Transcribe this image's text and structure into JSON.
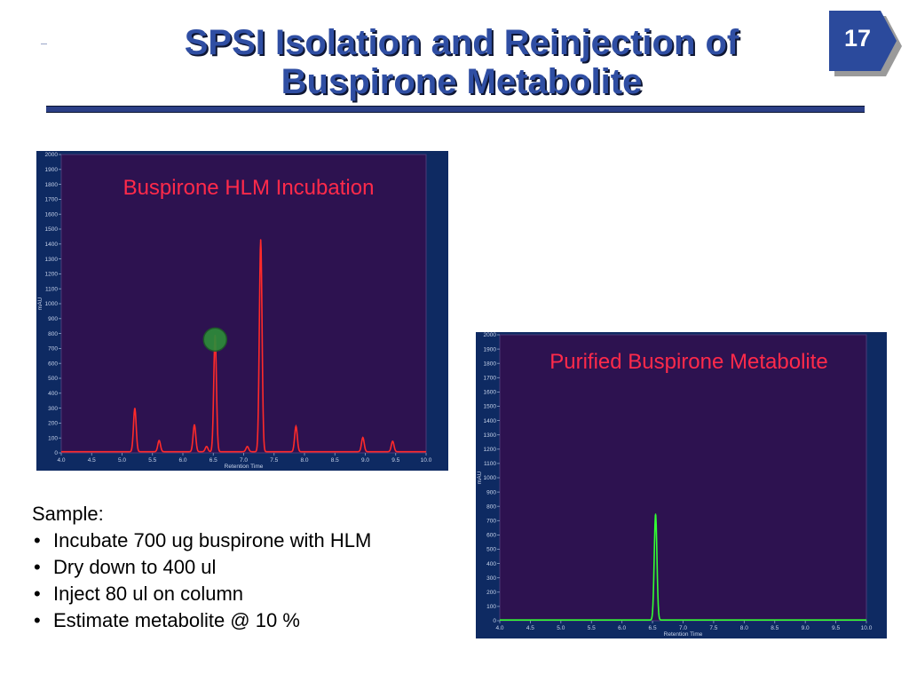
{
  "slide": {
    "title_line1": "SPSI Isolation and Reinjection of",
    "title_line2": "Buspirone Metabolite",
    "page_number": "17",
    "colors": {
      "title": "#2f4ea3",
      "title_shadow": "#0e1633",
      "rule": "#2b3f86",
      "badge": "#2b4a9c"
    }
  },
  "sample": {
    "heading": "Sample:",
    "items": [
      "Incubate 700 ug buspirone with HLM",
      "Dry down to 400 ul",
      "Inject 80 ul on column",
      "Estimate metabolite @ 10 %"
    ]
  },
  "chart_data": [
    {
      "type": "line",
      "title": "Buspirone HLM Incubation",
      "xlabel": "Retention Time",
      "ylabel": "mAU",
      "xlim": [
        4.0,
        10.0
      ],
      "ylim": [
        0,
        2000
      ],
      "xticks": [
        "4.0",
        "4.5",
        "5.0",
        "5.5",
        "6.0",
        "6.5",
        "7.0",
        "7.5",
        "8.0",
        "8.5",
        "9.0",
        "9.5",
        "10.0"
      ],
      "yticks": [
        "0",
        "100",
        "200",
        "300",
        "400",
        "500",
        "600",
        "700",
        "800",
        "900",
        "1000",
        "1100",
        "1200",
        "1300",
        "1400",
        "1500",
        "1600",
        "1700",
        "1800",
        "1900",
        "2000"
      ],
      "colors": {
        "plot_bg": "#2d1250",
        "frame": "#0e2a62",
        "line": "#ff2a2a",
        "title": "#ff2a4a",
        "marker": "#2e8b3a"
      },
      "baseline": 8,
      "peaks": [
        {
          "x": 5.21,
          "y": 290
        },
        {
          "x": 5.61,
          "y": 75
        },
        {
          "x": 6.19,
          "y": 180
        },
        {
          "x": 6.39,
          "y": 35
        },
        {
          "x": 6.53,
          "y": 780
        },
        {
          "x": 7.06,
          "y": 35
        },
        {
          "x": 7.28,
          "y": 1420
        },
        {
          "x": 7.86,
          "y": 170
        },
        {
          "x": 8.96,
          "y": 95
        },
        {
          "x": 9.45,
          "y": 70
        }
      ],
      "marker": {
        "x": 6.53,
        "y": 760
      }
    },
    {
      "type": "line",
      "title": "Purified Buspirone Metabolite",
      "xlabel": "Retention Time",
      "ylabel": "mAU",
      "xlim": [
        4.0,
        10.0
      ],
      "ylim": [
        0,
        2000
      ],
      "xticks": [
        "4.0",
        "4.5",
        "5.0",
        "5.5",
        "6.0",
        "6.5",
        "7.0",
        "7.5",
        "8.0",
        "8.5",
        "9.0",
        "9.5",
        "10.0"
      ],
      "yticks": [
        "0",
        "100",
        "200",
        "300",
        "400",
        "500",
        "600",
        "700",
        "800",
        "900",
        "1000",
        "1100",
        "1200",
        "1300",
        "1400",
        "1500",
        "1600",
        "1700",
        "1800",
        "1900",
        "2000"
      ],
      "colors": {
        "plot_bg": "#2d1250",
        "frame": "#0e2a62",
        "line": "#33ff33",
        "title": "#ff2a4a"
      },
      "baseline": 5,
      "peaks": [
        {
          "x": 6.55,
          "y": 740
        }
      ]
    }
  ]
}
